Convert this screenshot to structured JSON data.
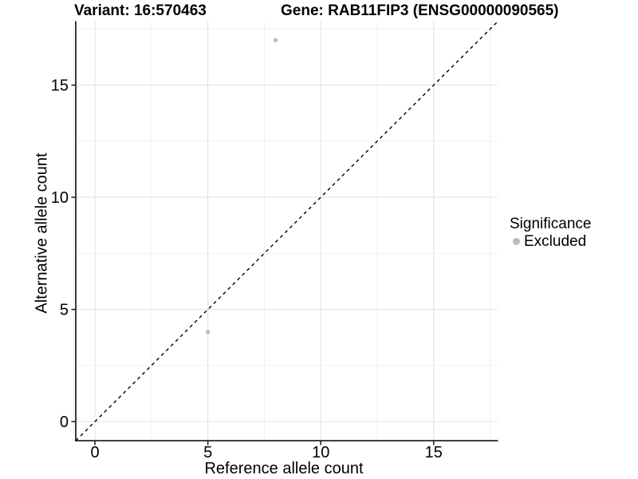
{
  "chart_data": {
    "type": "scatter",
    "titles": {
      "variant": "Variant: 16:570463",
      "gene": "Gene: RAB11FIP3 (ENSG00000090565)"
    },
    "xlabel": "Reference allele count",
    "ylabel": "Alternative allele count",
    "xlim": [
      -0.85,
      17.85
    ],
    "ylim": [
      -0.85,
      17.85
    ],
    "xticks": [
      0,
      5,
      10,
      15
    ],
    "yticks": [
      0,
      5,
      10,
      15
    ],
    "minor_xticks": [
      2.5,
      7.5,
      12.5,
      17.5
    ],
    "minor_yticks": [
      2.5,
      7.5,
      12.5,
      17.5
    ],
    "grid": true,
    "identity_line": {
      "style": "dashed",
      "slope": 1,
      "intercept": 0,
      "color": "#000000"
    },
    "series": [
      {
        "name": "Excluded",
        "color": "#bdbdbd",
        "points": [
          {
            "x": 5,
            "y": 4
          },
          {
            "x": 8,
            "y": 17
          }
        ]
      }
    ],
    "legend": {
      "position": "right",
      "title": "Significance",
      "items": [
        {
          "label": "Excluded",
          "color": "#bdbdbd"
        }
      ]
    },
    "colors": {
      "background": "#ffffff",
      "axis": "#262626",
      "grid_major": "#e3e3e3",
      "grid_minor": "#efefef",
      "tick_text": "#000000"
    }
  }
}
